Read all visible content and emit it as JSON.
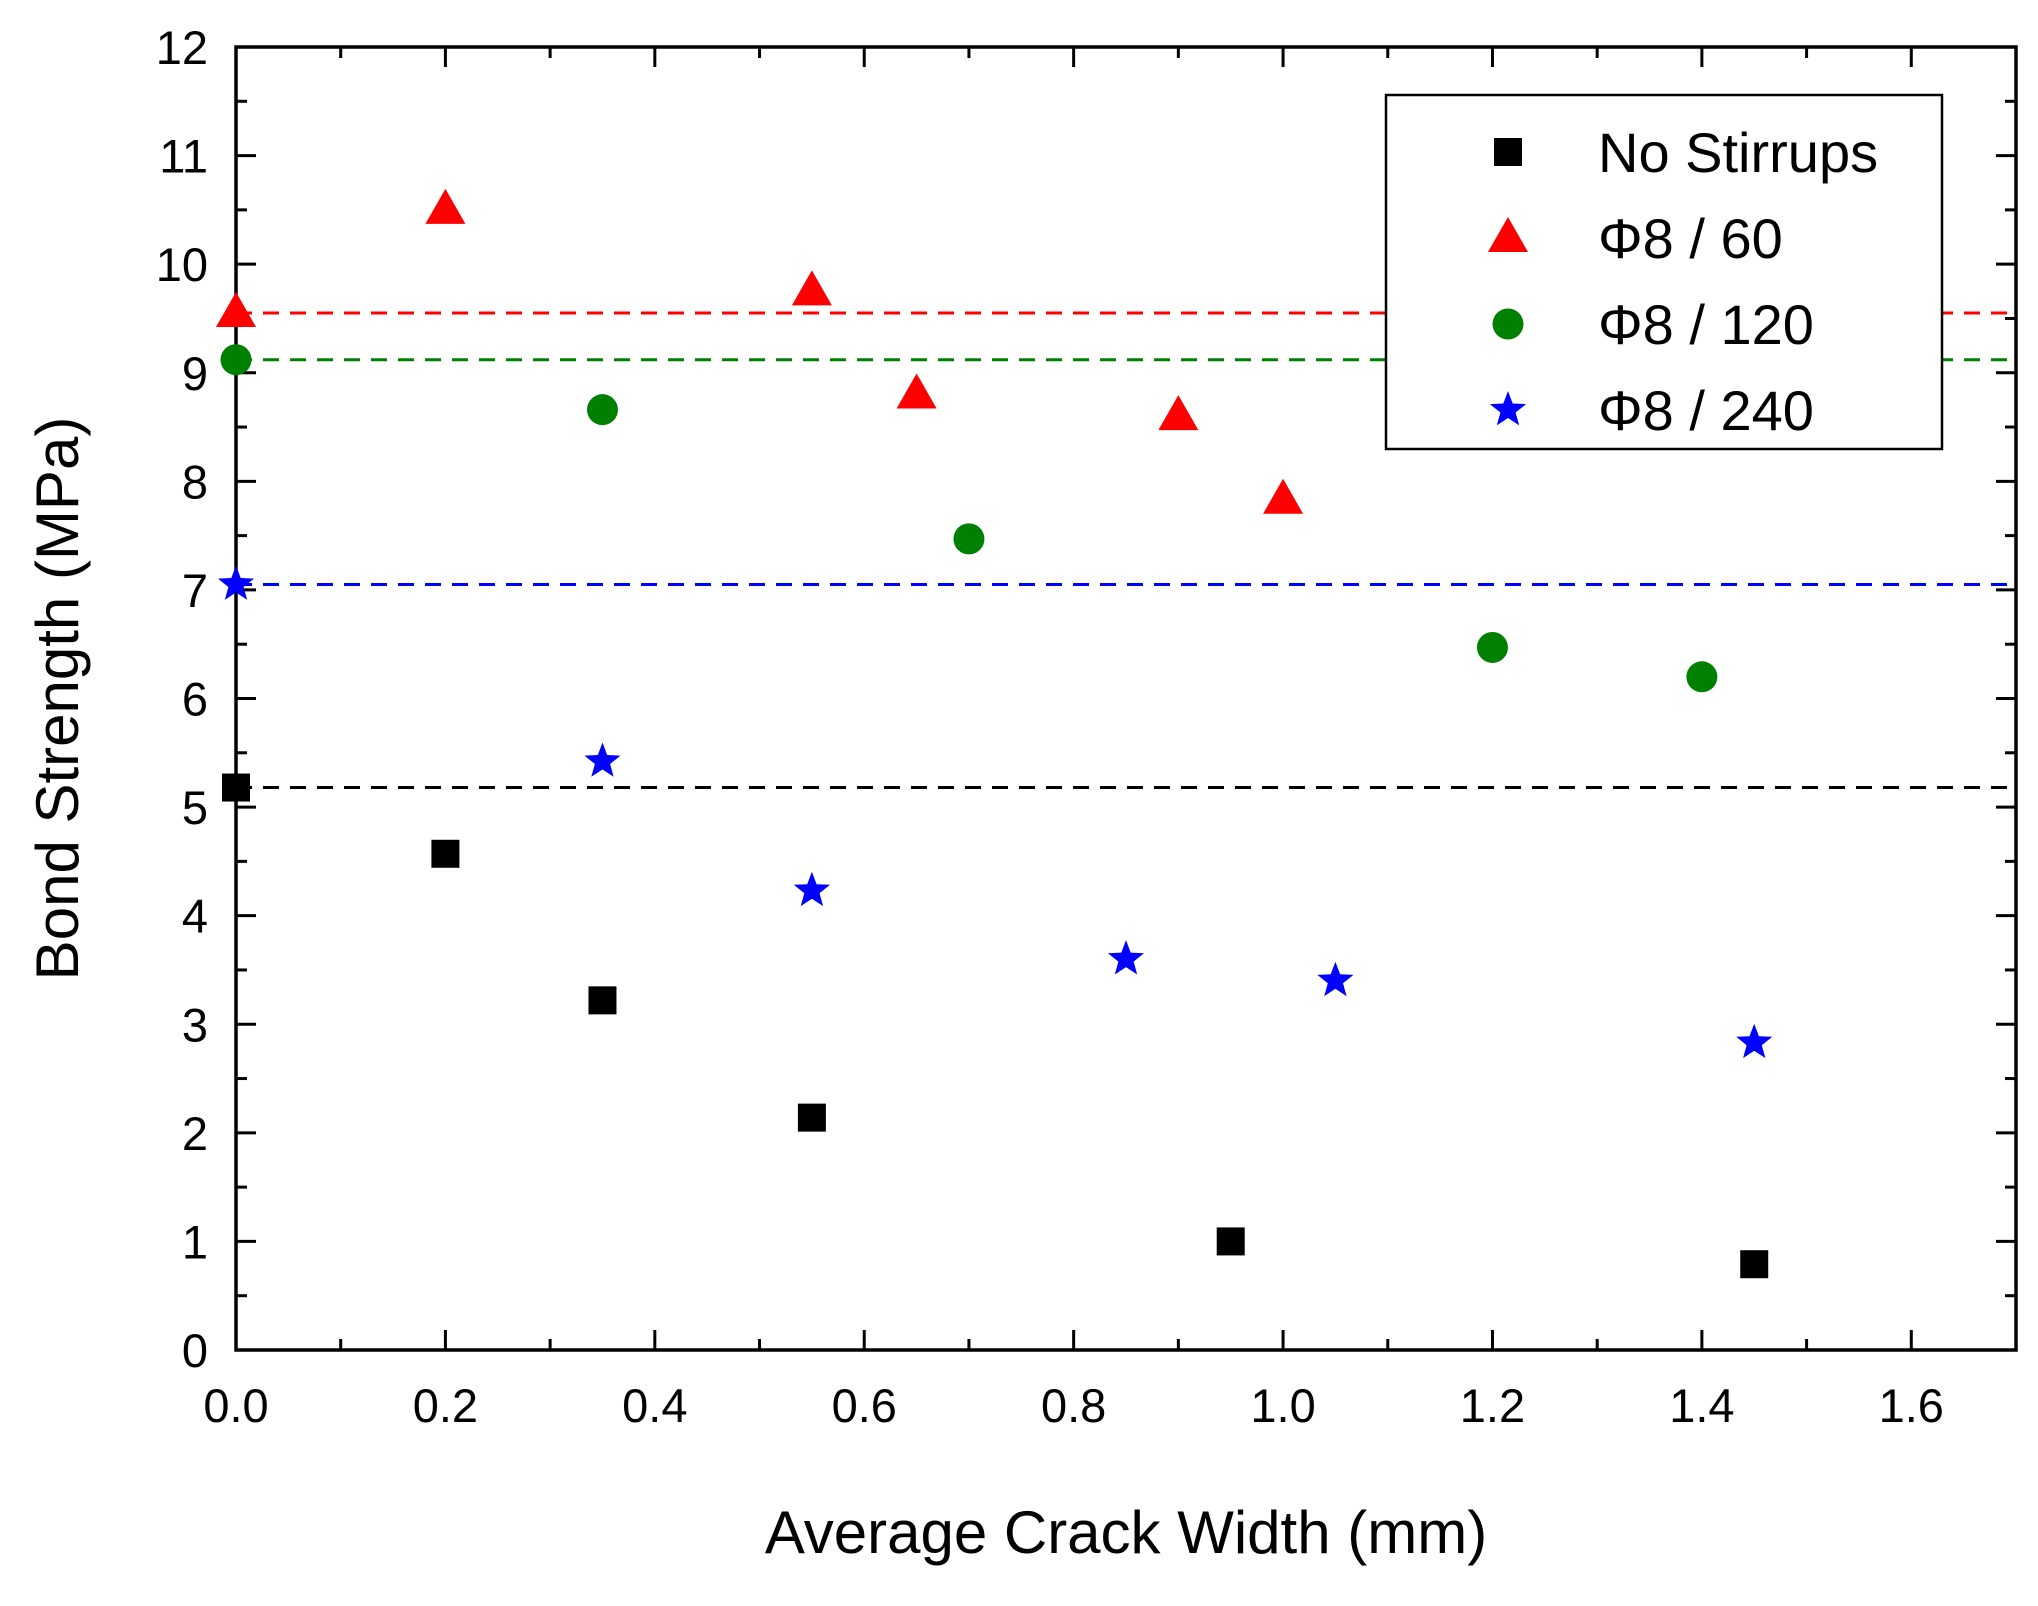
{
  "chart_data": {
    "type": "scatter",
    "title": "",
    "xlabel": "Average Crack Width (mm)",
    "ylabel": "Bond Strength (MPa)",
    "xlim": [
      0.0,
      1.7
    ],
    "ylim": [
      0,
      12
    ],
    "xticks": [
      0.0,
      0.2,
      0.4,
      0.6,
      0.8,
      1.0,
      1.2,
      1.4,
      1.6
    ],
    "xtick_labels": [
      "0.0",
      "0.2",
      "0.4",
      "0.6",
      "0.8",
      "1.0",
      "1.2",
      "1.4",
      "1.6"
    ],
    "yticks": [
      0,
      1,
      2,
      3,
      4,
      5,
      6,
      7,
      8,
      9,
      10,
      11,
      12
    ],
    "ytick_labels": [
      "0",
      "1",
      "2",
      "3",
      "4",
      "5",
      "6",
      "7",
      "8",
      "9",
      "10",
      "11",
      "12"
    ],
    "grid": false,
    "legend_position": "top-right",
    "series": [
      {
        "name": "No Stirrups",
        "marker": "square",
        "color": "#000000",
        "x": [
          0.0,
          0.2,
          0.35,
          0.55,
          0.95,
          1.45
        ],
        "y": [
          5.18,
          4.57,
          3.22,
          2.14,
          1.0,
          0.79
        ],
        "reference_line": 5.18
      },
      {
        "name": "Φ8 / 60",
        "marker": "triangle",
        "color": "#ff0000",
        "x": [
          0.0,
          0.2,
          0.55,
          0.65,
          0.9,
          1.0
        ],
        "y": [
          9.55,
          10.5,
          9.75,
          8.8,
          8.6,
          7.83
        ],
        "reference_line": 9.55
      },
      {
        "name": "Φ8 / 120",
        "marker": "circle",
        "color": "#008000",
        "x": [
          0.0,
          0.35,
          0.7,
          1.2,
          1.4
        ],
        "y": [
          9.12,
          8.66,
          7.47,
          6.47,
          6.2
        ],
        "reference_line": 9.12
      },
      {
        "name": "Φ8 / 240",
        "marker": "star",
        "color": "#0000ff",
        "x": [
          0.0,
          0.35,
          0.55,
          0.85,
          1.05,
          1.45
        ],
        "y": [
          7.05,
          5.42,
          4.23,
          3.6,
          3.4,
          2.83
        ],
        "reference_line": 7.05
      }
    ]
  }
}
